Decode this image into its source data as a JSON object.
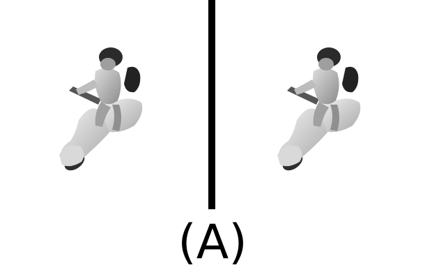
{
  "caption": "(A)",
  "images": [
    {
      "icon": "scooter-rider-icon",
      "view": "left"
    },
    {
      "icon": "scooter-rider-icon",
      "view": "right"
    }
  ],
  "colors": {
    "background": "#ffffff",
    "divider": "#000000"
  }
}
